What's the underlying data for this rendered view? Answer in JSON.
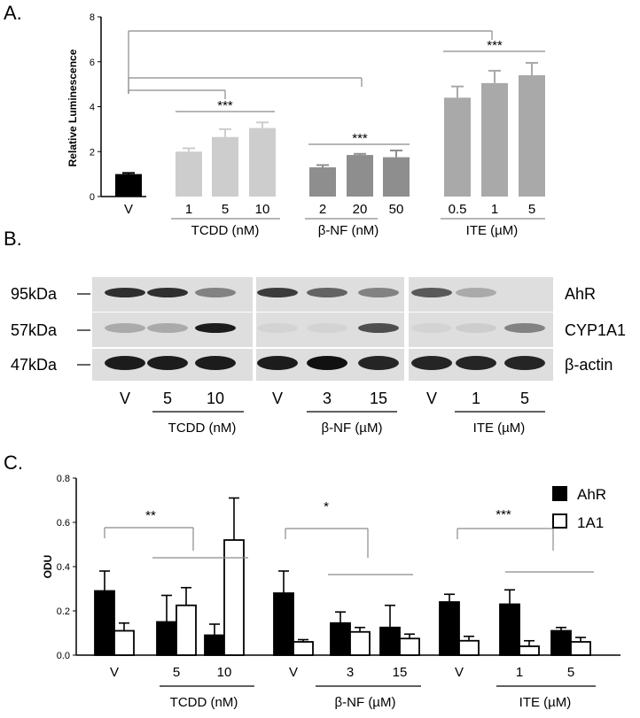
{
  "chart_data": [
    {
      "panel": "A.",
      "type": "bar",
      "ylabel": "Relative Luminescence",
      "ylim": [
        0,
        8
      ],
      "yticks": [
        0,
        2,
        4,
        6,
        8
      ],
      "bars": [
        {
          "label": "V",
          "value": 1.0,
          "error": 0.05,
          "color": "#000000"
        },
        {
          "label": "1",
          "value": 2.0,
          "error": 0.15,
          "color": "#cdcdcd"
        },
        {
          "label": "5",
          "value": 2.65,
          "error": 0.35,
          "color": "#cdcdcd"
        },
        {
          "label": "10",
          "value": 3.05,
          "error": 0.25,
          "color": "#cdcdcd"
        },
        {
          "label": "2",
          "value": 1.3,
          "error": 0.1,
          "color": "#8e8e8e"
        },
        {
          "label": "20",
          "value": 1.85,
          "error": 0.05,
          "color": "#8e8e8e"
        },
        {
          "label": "50",
          "value": 1.75,
          "error": 0.3,
          "color": "#8e8e8e"
        },
        {
          "label": "0.5",
          "value": 4.4,
          "error": 0.5,
          "color": "#a9a9a9"
        },
        {
          "label": "1",
          "value": 5.05,
          "error": 0.55,
          "color": "#a9a9a9"
        },
        {
          "label": "5",
          "value": 5.4,
          "error": 0.55,
          "color": "#a9a9a9"
        }
      ],
      "groups": [
        {
          "label": "TCDD (nM)"
        },
        {
          "label": "β-NF (nM)"
        },
        {
          "label": "ITE (µM)"
        }
      ],
      "significance": [
        "***",
        "***",
        "***"
      ]
    },
    {
      "panel": "C.",
      "type": "bar",
      "ylabel": "ODU",
      "ylim": [
        0,
        0.8
      ],
      "yticks": [
        "0.0",
        "0.2",
        "0.4",
        "0.6",
        "0.8"
      ],
      "categories": [
        "V",
        "5",
        "10",
        "V",
        "3",
        "15",
        "V",
        "1",
        "5"
      ],
      "series": [
        {
          "name": "AhR",
          "color": "#000000",
          "values": [
            0.29,
            0.15,
            0.09,
            0.28,
            0.145,
            0.125,
            0.24,
            0.23,
            0.11
          ],
          "errors": [
            0.09,
            0.12,
            0.05,
            0.1,
            0.05,
            0.1,
            0.035,
            0.065,
            0.015
          ]
        },
        {
          "name": "1A1",
          "color": "#ffffff",
          "values": [
            0.11,
            0.225,
            0.52,
            0.06,
            0.105,
            0.075,
            0.065,
            0.04,
            0.06
          ],
          "errors": [
            0.035,
            0.08,
            0.19,
            0.01,
            0.02,
            0.02,
            0.02,
            0.025,
            0.02
          ]
        }
      ],
      "groups": [
        {
          "label": "TCDD (nM)"
        },
        {
          "label": "β-NF (µM)"
        },
        {
          "label": "ITE (µM)"
        }
      ],
      "significance": [
        "**",
        "*",
        "***"
      ],
      "legend": "top-right"
    }
  ],
  "blot": {
    "panel": "B.",
    "markers": [
      "95kDa",
      "57kDa",
      "47kDa"
    ],
    "proteins": [
      "AhR",
      "CYP1A1",
      "β-actin"
    ],
    "lanes": [
      "V",
      "5",
      "10",
      "V",
      "3",
      "15",
      "V",
      "1",
      "5"
    ],
    "groups": [
      "TCDD (nM)",
      "β-NF (µM)",
      "ITE (µM)"
    ],
    "band_intensity": [
      [
        0.85,
        0.85,
        0.45,
        0.8,
        0.6,
        0.45,
        0.65,
        0.25,
        0.0
      ],
      [
        0.25,
        0.25,
        0.95,
        0.05,
        0.05,
        0.7,
        0.05,
        0.08,
        0.45
      ],
      [
        0.95,
        0.95,
        0.95,
        0.95,
        1.0,
        0.9,
        0.9,
        0.9,
        0.9
      ]
    ]
  }
}
